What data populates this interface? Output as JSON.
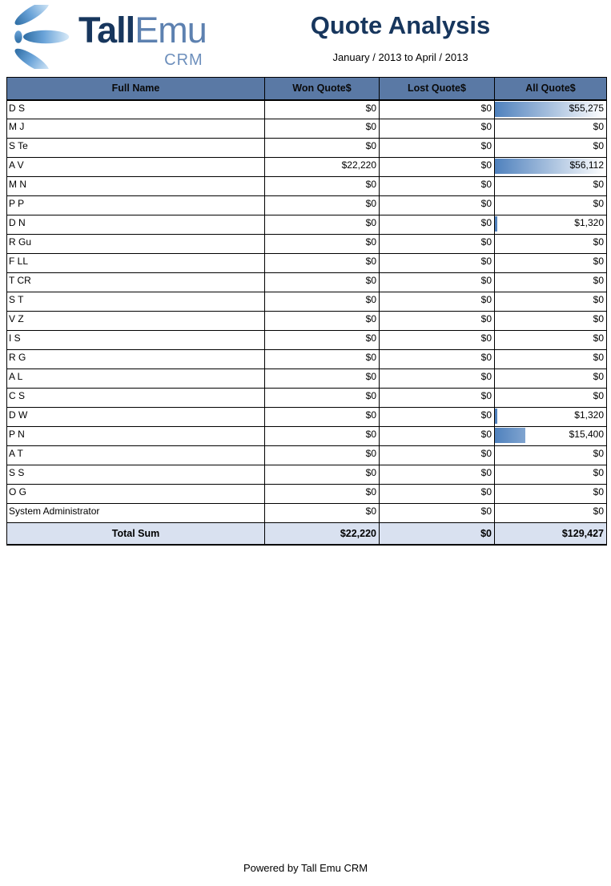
{
  "logo": {
    "brand_tall": "Tall",
    "brand_emu": "Emu",
    "brand_crm": "CRM"
  },
  "header": {
    "title": "Quote Analysis",
    "subtitle": "January / 2013 to April / 2013"
  },
  "table": {
    "columns": [
      "Full Name",
      "Won Quote$",
      "Lost Quote$",
      "All Quote$"
    ],
    "bar_max": 56112,
    "rows": [
      {
        "name": "D S",
        "won": "$0",
        "lost": "$0",
        "all": "$55,275",
        "all_value": 55275
      },
      {
        "name": "M J",
        "won": "$0",
        "lost": "$0",
        "all": "$0",
        "all_value": 0
      },
      {
        "name": "S Te",
        "won": "$0",
        "lost": "$0",
        "all": "$0",
        "all_value": 0
      },
      {
        "name": "A V",
        "won": "$22,220",
        "lost": "$0",
        "all": "$56,112",
        "all_value": 56112
      },
      {
        "name": "M N",
        "won": "$0",
        "lost": "$0",
        "all": "$0",
        "all_value": 0
      },
      {
        "name": "P P",
        "won": "$0",
        "lost": "$0",
        "all": "$0",
        "all_value": 0
      },
      {
        "name": "D N",
        "won": "$0",
        "lost": "$0",
        "all": "$1,320",
        "all_value": 1320
      },
      {
        "name": "R Gu",
        "won": "$0",
        "lost": "$0",
        "all": "$0",
        "all_value": 0
      },
      {
        "name": "F LL",
        "won": "$0",
        "lost": "$0",
        "all": "$0",
        "all_value": 0
      },
      {
        "name": "T CR",
        "won": "$0",
        "lost": "$0",
        "all": "$0",
        "all_value": 0
      },
      {
        "name": "S T",
        "won": "$0",
        "lost": "$0",
        "all": "$0",
        "all_value": 0
      },
      {
        "name": "V Z",
        "won": "$0",
        "lost": "$0",
        "all": "$0",
        "all_value": 0
      },
      {
        "name": "I S",
        "won": "$0",
        "lost": "$0",
        "all": "$0",
        "all_value": 0
      },
      {
        "name": "R G",
        "won": "$0",
        "lost": "$0",
        "all": "$0",
        "all_value": 0
      },
      {
        "name": "A L",
        "won": "$0",
        "lost": "$0",
        "all": "$0",
        "all_value": 0
      },
      {
        "name": "C S",
        "won": "$0",
        "lost": "$0",
        "all": "$0",
        "all_value": 0
      },
      {
        "name": "D W",
        "won": "$0",
        "lost": "$0",
        "all": "$1,320",
        "all_value": 1320
      },
      {
        "name": "P N",
        "won": "$0",
        "lost": "$0",
        "all": "$15,400",
        "all_value": 15400
      },
      {
        "name": "A T",
        "won": "$0",
        "lost": "$0",
        "all": "$0",
        "all_value": 0
      },
      {
        "name": "S S",
        "won": "$0",
        "lost": "$0",
        "all": "$0",
        "all_value": 0
      },
      {
        "name": "O G",
        "won": "$0",
        "lost": "$0",
        "all": "$0",
        "all_value": 0
      },
      {
        "name": "System Administrator",
        "won": "$0",
        "lost": "$0",
        "all": "$0",
        "all_value": 0
      }
    ],
    "total": {
      "label": "Total Sum",
      "won": "$22,220",
      "lost": "$0",
      "all": "$129,427"
    }
  },
  "footer": {
    "powered_by": "Powered by Tall Emu CRM"
  },
  "colors": {
    "header_bg": "#5a79a5",
    "total_bg": "#d9e1f0",
    "bar_start": "#4f81bd",
    "bar_end": "#ffffff",
    "title_text": "#17365d",
    "brand_emu_text": "#5d81b0"
  },
  "chart_data": {
    "type": "table",
    "title": "Quote Analysis",
    "subtitle": "January / 2013 to April / 2013",
    "columns": [
      "Full Name",
      "Won Quote$",
      "Lost Quote$",
      "All Quote$"
    ],
    "rows": [
      [
        "D S",
        0,
        0,
        55275
      ],
      [
        "M J",
        0,
        0,
        0
      ],
      [
        "S Te",
        0,
        0,
        0
      ],
      [
        "A V",
        22220,
        0,
        56112
      ],
      [
        "M N",
        0,
        0,
        0
      ],
      [
        "P P",
        0,
        0,
        0
      ],
      [
        "D N",
        0,
        0,
        1320
      ],
      [
        "R Gu",
        0,
        0,
        0
      ],
      [
        "F LL",
        0,
        0,
        0
      ],
      [
        "T CR",
        0,
        0,
        0
      ],
      [
        "S T",
        0,
        0,
        0
      ],
      [
        "V Z",
        0,
        0,
        0
      ],
      [
        "I S",
        0,
        0,
        0
      ],
      [
        "R G",
        0,
        0,
        0
      ],
      [
        "A L",
        0,
        0,
        0
      ],
      [
        "C S",
        0,
        0,
        0
      ],
      [
        "D W",
        0,
        0,
        1320
      ],
      [
        "P N",
        0,
        0,
        15400
      ],
      [
        "A T",
        0,
        0,
        0
      ],
      [
        "S S",
        0,
        0,
        0
      ],
      [
        "O G",
        0,
        0,
        0
      ],
      [
        "System Administrator",
        0,
        0,
        0
      ]
    ],
    "totals": [
      "Total Sum",
      22220,
      0,
      129427
    ],
    "bar_column": "All Quote$",
    "bar_scale_max": 56112
  }
}
